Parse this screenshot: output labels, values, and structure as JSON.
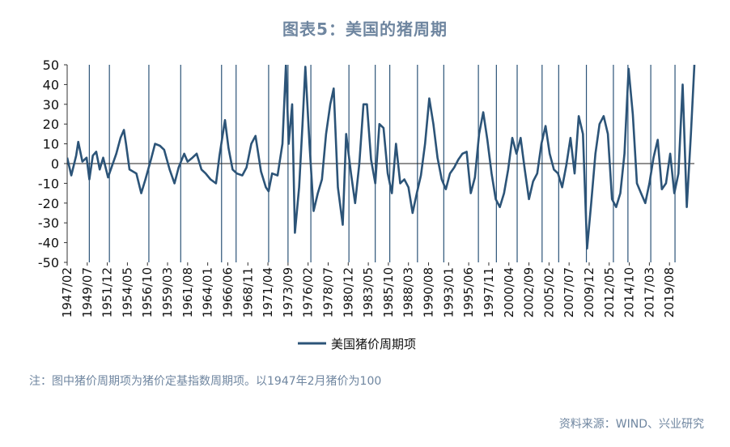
{
  "title": "图表5：美国的猪周期",
  "note": "注：图中猪价周期项为猪价定基指数周期项。以1947年2月猪价为100",
  "source": "资料来源：WIND、兴业研究",
  "colors": {
    "line": "#2c5478",
    "text": "#6f86a0",
    "axis": "#333333"
  },
  "chart_data": {
    "type": "line",
    "title": "图表5：美国的猪周期",
    "ylim": [
      -50,
      50
    ],
    "yticks": [
      50,
      40,
      30,
      20,
      10,
      0,
      -10,
      -20,
      -30,
      -40,
      -50
    ],
    "x_range": [
      "1947/02",
      "2022/08"
    ],
    "xticks": [
      "1947/02",
      "1949/07",
      "1951/12",
      "1954/05",
      "1956/10",
      "1959/03",
      "1961/08",
      "1964/01",
      "1966/06",
      "1968/11",
      "1971/04",
      "1973/09",
      "1976/02",
      "1978/07",
      "1980/12",
      "1983/05",
      "1985/10",
      "1988/03",
      "1990/08",
      "1993/01",
      "1995/06",
      "1997/11",
      "2000/04",
      "2002/09",
      "2005/02",
      "2007/07",
      "2009/12",
      "2012/05",
      "2014/10",
      "2017/03",
      "2019/08"
    ],
    "vlines": [
      "1949/10",
      "1952/03",
      "1956/12",
      "1960/10",
      "1965/09",
      "1967/06",
      "1971/05",
      "1973/09",
      "1976/06",
      "1981/01",
      "1984/03",
      "1985/12",
      "1989/04",
      "1992/06",
      "1996/08",
      "1998/10",
      "2001/04",
      "2004/04",
      "2006/04",
      "2009/08",
      "2012/11",
      "2014/08",
      "2017/05",
      "2020/04"
    ],
    "legend": "美国猪价周期项",
    "legend_position": "bottom",
    "series": [
      {
        "name": "美国猪价周期项",
        "points": [
          [
            "1947/02",
            3
          ],
          [
            "1947/08",
            -6
          ],
          [
            "1948/03",
            4
          ],
          [
            "1948/06",
            11
          ],
          [
            "1948/12",
            1
          ],
          [
            "1949/06",
            3
          ],
          [
            "1949/10",
            -8
          ],
          [
            "1950/03",
            4
          ],
          [
            "1950/08",
            6
          ],
          [
            "1951/01",
            -3
          ],
          [
            "1951/06",
            3
          ],
          [
            "1952/01",
            -7
          ],
          [
            "1952/06",
            -2
          ],
          [
            "1953/01",
            5
          ],
          [
            "1953/07",
            13
          ],
          [
            "1953/12",
            17
          ],
          [
            "1954/03",
            10
          ],
          [
            "1954/08",
            -3
          ],
          [
            "1955/06",
            -5
          ],
          [
            "1956/01",
            -15
          ],
          [
            "1956/07",
            -8
          ],
          [
            "1957/03",
            2
          ],
          [
            "1957/09",
            10
          ],
          [
            "1958/04",
            9
          ],
          [
            "1958/10",
            7
          ],
          [
            "1959/06",
            -3
          ],
          [
            "1960/01",
            -10
          ],
          [
            "1960/07",
            -2
          ],
          [
            "1961/03",
            5
          ],
          [
            "1961/08",
            1
          ],
          [
            "1962/03",
            3
          ],
          [
            "1962/09",
            5
          ],
          [
            "1963/04",
            -3
          ],
          [
            "1963/10",
            -5
          ],
          [
            "1964/05",
            -8
          ],
          [
            "1965/01",
            -10
          ],
          [
            "1965/06",
            4
          ],
          [
            "1966/02",
            22
          ],
          [
            "1966/07",
            8
          ],
          [
            "1967/01",
            -3
          ],
          [
            "1967/07",
            -5
          ],
          [
            "1968/03",
            -6
          ],
          [
            "1968/09",
            -2
          ],
          [
            "1969/04",
            10
          ],
          [
            "1969/10",
            14
          ],
          [
            "1970/06",
            -4
          ],
          [
            "1971/01",
            -12
          ],
          [
            "1971/05",
            -14
          ],
          [
            "1971/10",
            -5
          ],
          [
            "1972/06",
            -6
          ],
          [
            "1973/01",
            10
          ],
          [
            "1973/06",
            50
          ],
          [
            "1973/10",
            10
          ],
          [
            "1974/03",
            30
          ],
          [
            "1974/07",
            -35
          ],
          [
            "1975/01",
            -12
          ],
          [
            "1975/06",
            20
          ],
          [
            "1975/10",
            49
          ],
          [
            "1976/04",
            10
          ],
          [
            "1976/10",
            -24
          ],
          [
            "1977/04",
            -15
          ],
          [
            "1977/10",
            -8
          ],
          [
            "1978/04",
            15
          ],
          [
            "1978/10",
            30
          ],
          [
            "1979/03",
            38
          ],
          [
            "1979/09",
            -12
          ],
          [
            "1980/04",
            -31
          ],
          [
            "1980/09",
            15
          ],
          [
            "1981/04",
            -5
          ],
          [
            "1981/10",
            -20
          ],
          [
            "1982/04",
            0
          ],
          [
            "1982/10",
            30
          ],
          [
            "1983/03",
            30
          ],
          [
            "1983/09",
            2
          ],
          [
            "1984/03",
            -10
          ],
          [
            "1984/09",
            20
          ],
          [
            "1985/03",
            18
          ],
          [
            "1985/09",
            -5
          ],
          [
            "1986/03",
            -15
          ],
          [
            "1986/09",
            10
          ],
          [
            "1987/03",
            -10
          ],
          [
            "1987/09",
            -8
          ],
          [
            "1988/03",
            -12
          ],
          [
            "1988/09",
            -25
          ],
          [
            "1989/03",
            -15
          ],
          [
            "1989/09",
            -6
          ],
          [
            "1990/03",
            10
          ],
          [
            "1990/09",
            33
          ],
          [
            "1991/03",
            20
          ],
          [
            "1991/09",
            3
          ],
          [
            "1992/03",
            -8
          ],
          [
            "1992/09",
            -13
          ],
          [
            "1993/03",
            -5
          ],
          [
            "1993/09",
            -2
          ],
          [
            "1994/03",
            2
          ],
          [
            "1994/09",
            5
          ],
          [
            "1995/03",
            6
          ],
          [
            "1995/09",
            -15
          ],
          [
            "1996/03",
            -7
          ],
          [
            "1996/09",
            15
          ],
          [
            "1997/03",
            26
          ],
          [
            "1997/09",
            12
          ],
          [
            "1998/03",
            -5
          ],
          [
            "1998/09",
            -18
          ],
          [
            "1999/03",
            -22
          ],
          [
            "1999/09",
            -15
          ],
          [
            "2000/03",
            -3
          ],
          [
            "2000/09",
            13
          ],
          [
            "2001/03",
            5
          ],
          [
            "2001/09",
            13
          ],
          [
            "2002/03",
            -3
          ],
          [
            "2002/09",
            -18
          ],
          [
            "2003/03",
            -9
          ],
          [
            "2003/09",
            -5
          ],
          [
            "2004/03",
            10
          ],
          [
            "2004/09",
            19
          ],
          [
            "2005/03",
            5
          ],
          [
            "2005/09",
            -3
          ],
          [
            "2006/03",
            -5
          ],
          [
            "2006/09",
            -12
          ],
          [
            "2007/03",
            -1
          ],
          [
            "2007/09",
            13
          ],
          [
            "2008/03",
            -5
          ],
          [
            "2008/09",
            24
          ],
          [
            "2009/03",
            15
          ],
          [
            "2009/09",
            -43
          ],
          [
            "2010/03",
            -20
          ],
          [
            "2010/09",
            5
          ],
          [
            "2011/03",
            20
          ],
          [
            "2011/09",
            24
          ],
          [
            "2012/03",
            15
          ],
          [
            "2012/09",
            -18
          ],
          [
            "2013/03",
            -22
          ],
          [
            "2013/09",
            -15
          ],
          [
            "2014/03",
            5
          ],
          [
            "2014/09",
            48
          ],
          [
            "2015/03",
            25
          ],
          [
            "2015/09",
            -10
          ],
          [
            "2016/03",
            -15
          ],
          [
            "2016/09",
            -20
          ],
          [
            "2017/03",
            -10
          ],
          [
            "2017/09",
            3
          ],
          [
            "2018/03",
            12
          ],
          [
            "2018/09",
            -13
          ],
          [
            "2019/03",
            -10
          ],
          [
            "2019/09",
            5
          ],
          [
            "2020/03",
            -15
          ],
          [
            "2020/09",
            -5
          ],
          [
            "2021/03",
            40
          ],
          [
            "2021/09",
            -22
          ],
          [
            "2022/03",
            15
          ],
          [
            "2022/08",
            50
          ]
        ]
      }
    ]
  }
}
